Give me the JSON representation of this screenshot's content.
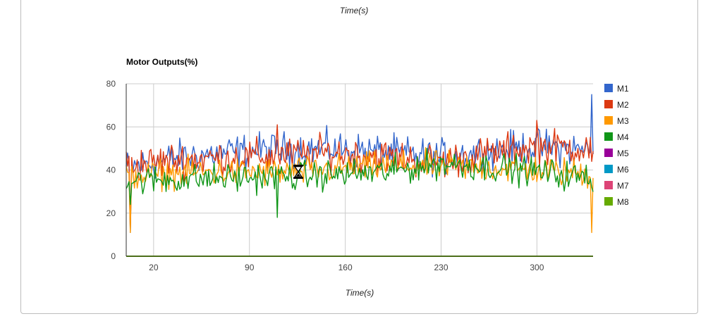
{
  "previous_chart": {
    "xlabel": "Time(s)"
  },
  "chart_data": {
    "type": "line",
    "title": "Motor Outputs(%)",
    "xlabel": "Time(s)",
    "ylabel": "",
    "xlim": [
      0,
      341
    ],
    "ylim": [
      0,
      80
    ],
    "x_ticks": [
      20,
      90,
      160,
      230,
      300
    ],
    "y_ticks": [
      0,
      20,
      40,
      60,
      80
    ],
    "grid": true,
    "legend": "right",
    "x_sampling": {
      "start": 0,
      "end": 341,
      "count": 341
    },
    "series": [
      {
        "name": "M1",
        "color": "#3366cc",
        "levels": [
          [
            0,
            41
          ],
          [
            40,
            46
          ],
          [
            90,
            49
          ],
          [
            150,
            50
          ],
          [
            230,
            46
          ],
          [
            300,
            51
          ],
          [
            340,
            49
          ]
        ],
        "noise": 6,
        "spikes": [
          [
            3,
            11
          ],
          [
            340,
            75
          ]
        ]
      },
      {
        "name": "M2",
        "color": "#dc3912",
        "levels": [
          [
            0,
            42
          ],
          [
            40,
            45
          ],
          [
            90,
            46
          ],
          [
            150,
            48
          ],
          [
            230,
            44
          ],
          [
            300,
            51
          ],
          [
            340,
            50
          ]
        ],
        "noise": 6,
        "spikes": [
          [
            3,
            12
          ],
          [
            110,
            61
          ],
          [
            300,
            63
          ],
          [
            340,
            44
          ]
        ]
      },
      {
        "name": "M3",
        "color": "#ff9900",
        "levels": [
          [
            0,
            37
          ],
          [
            50,
            39
          ],
          [
            120,
            39
          ],
          [
            190,
            42
          ],
          [
            230,
            42
          ],
          [
            300,
            40
          ],
          [
            340,
            38
          ]
        ],
        "noise": 5,
        "spikes": [
          [
            3,
            11
          ],
          [
            340,
            11
          ]
        ]
      },
      {
        "name": "M4",
        "color": "#109618",
        "levels": [
          [
            0,
            35
          ],
          [
            60,
            36
          ],
          [
            120,
            37
          ],
          [
            190,
            39
          ],
          [
            230,
            43
          ],
          [
            290,
            40
          ],
          [
            340,
            36
          ]
        ],
        "noise": 5,
        "spikes": [
          [
            3,
            24
          ],
          [
            110,
            18
          ],
          [
            340,
            32
          ]
        ]
      },
      {
        "name": "M5",
        "color": "#990099",
        "constant": 0
      },
      {
        "name": "M6",
        "color": "#0099c6",
        "constant": 0
      },
      {
        "name": "M7",
        "color": "#dd4477",
        "constant": 0
      },
      {
        "name": "M8",
        "color": "#66aa00",
        "constant": 0
      }
    ]
  }
}
